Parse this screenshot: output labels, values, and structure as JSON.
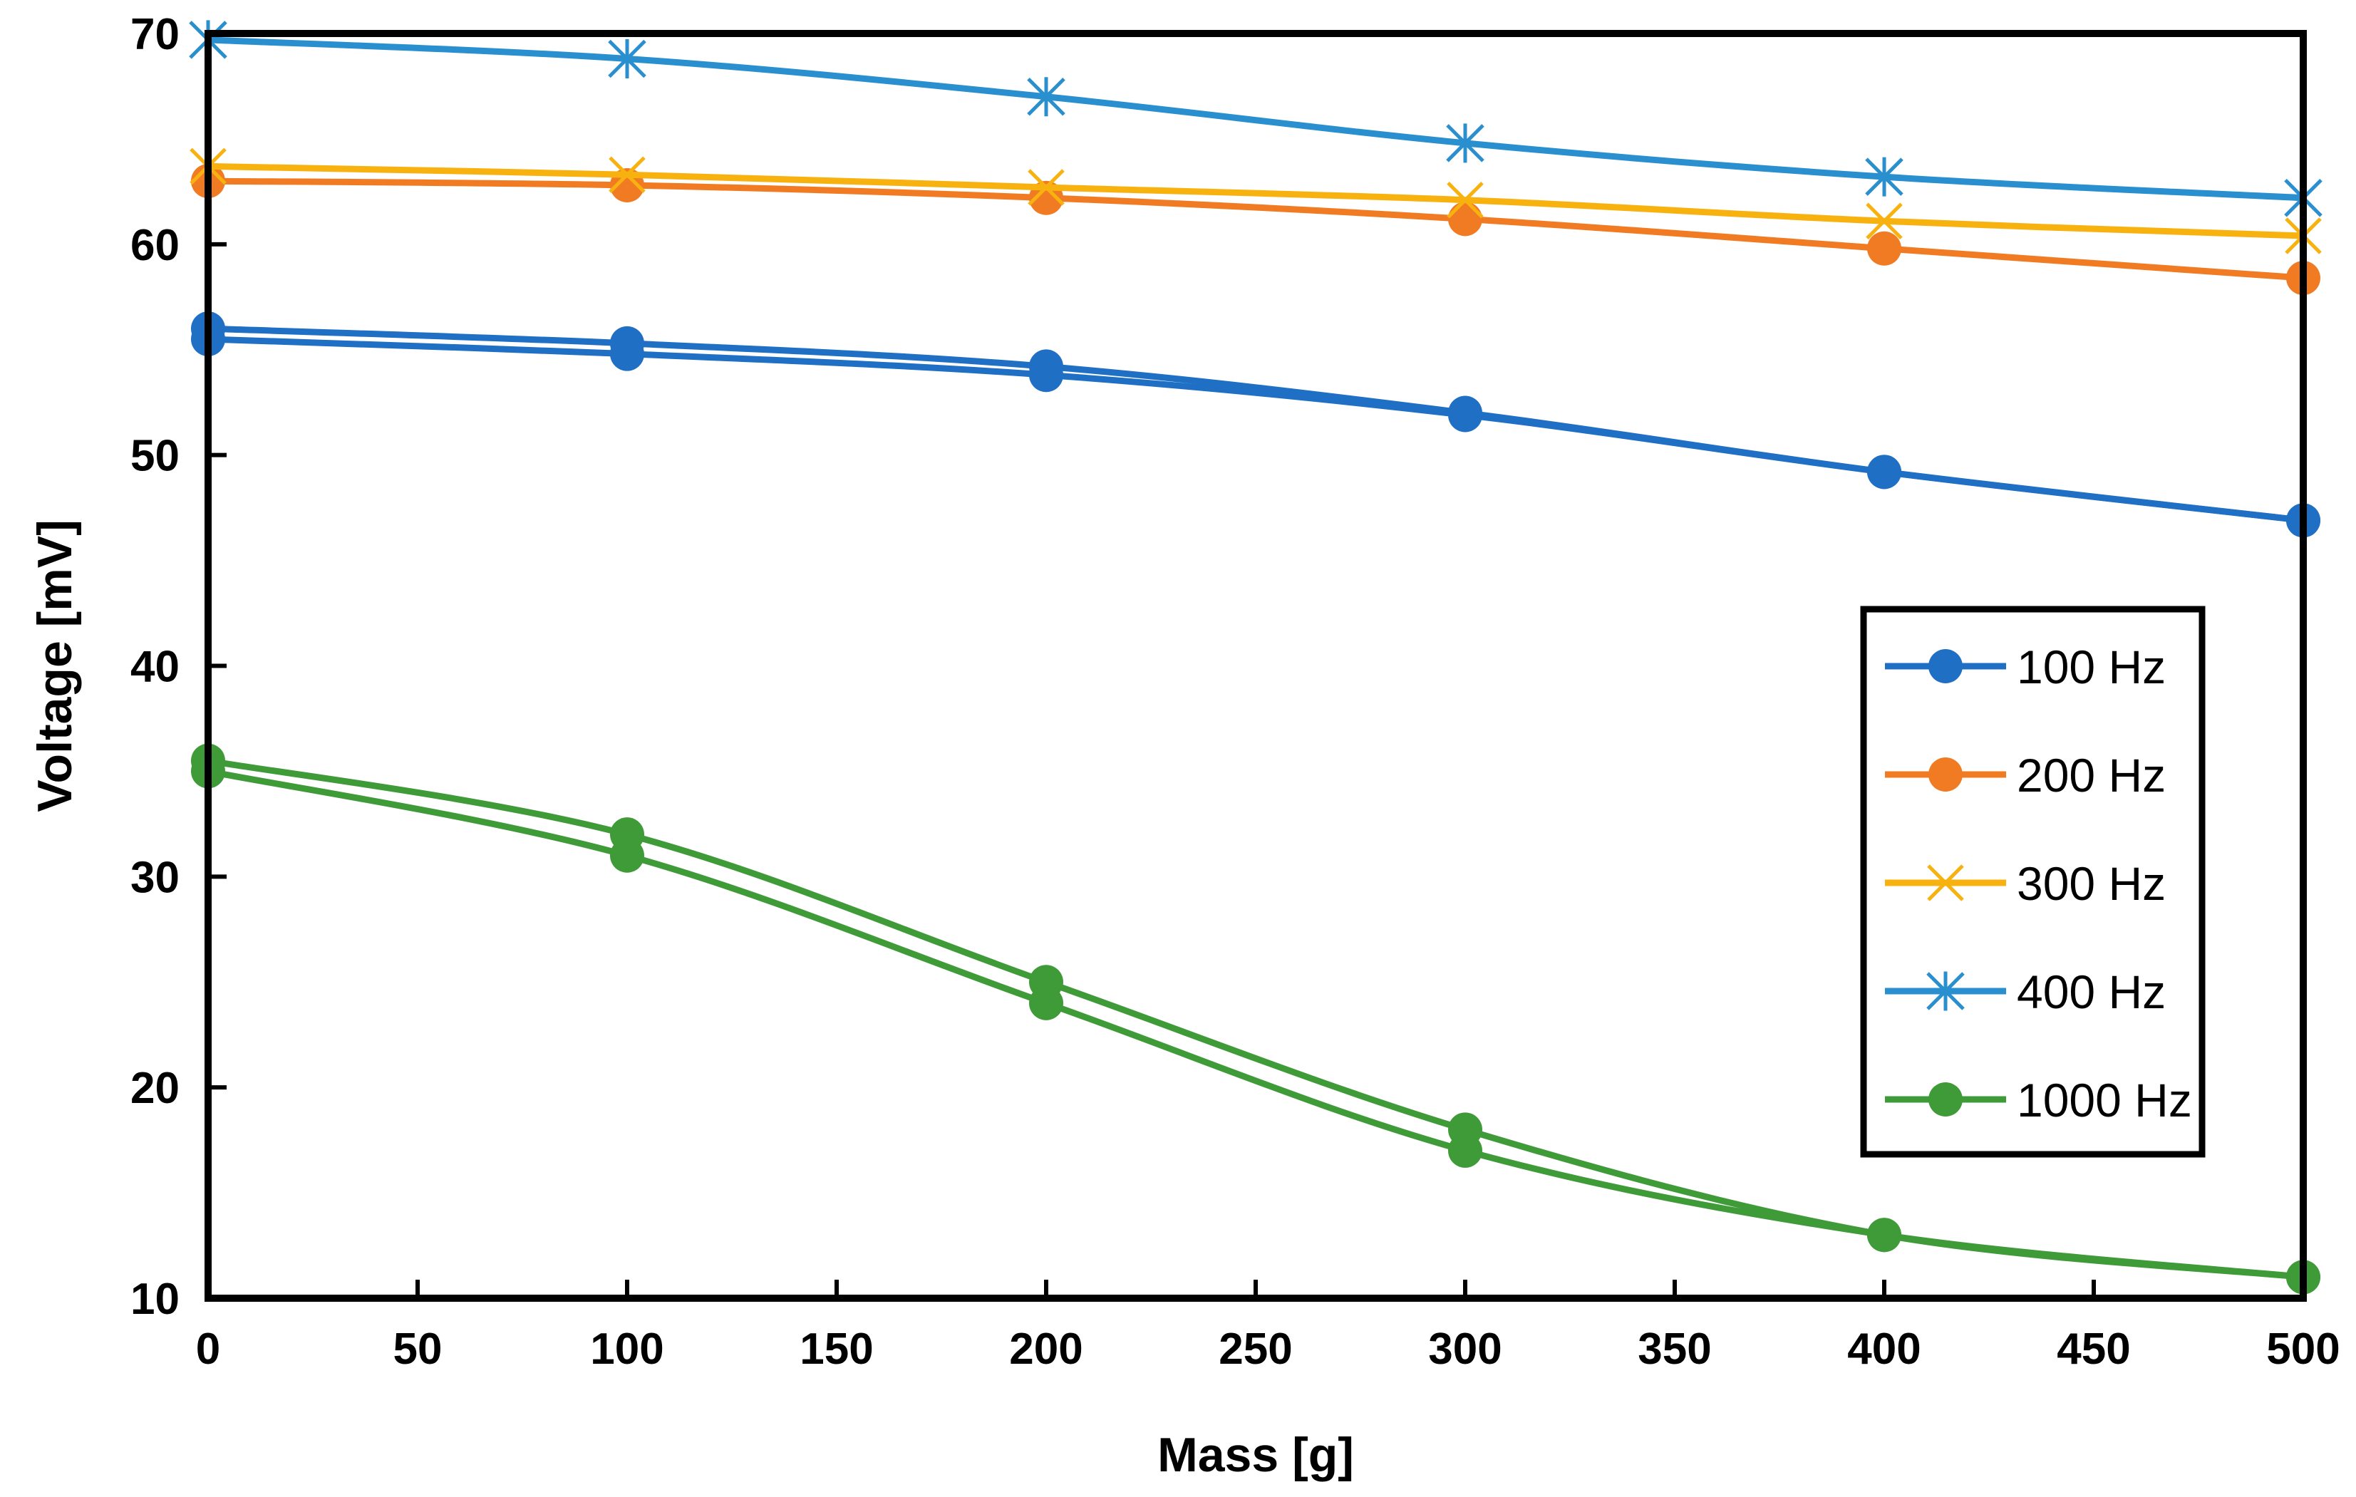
{
  "chart_data": {
    "type": "line",
    "title": "",
    "xlabel": "Mass [g]",
    "ylabel": "Voltage [mV]",
    "xlim": [
      0,
      500
    ],
    "ylim": [
      10,
      70
    ],
    "xticks": [
      0,
      50,
      100,
      150,
      200,
      250,
      300,
      350,
      400,
      450,
      500
    ],
    "yticks": [
      10,
      20,
      30,
      40,
      50,
      60,
      70
    ],
    "grid": false,
    "legend_position": "right",
    "x": [
      0,
      100,
      200,
      300,
      400,
      500
    ],
    "series": [
      {
        "name": "100 Hz",
        "color": "#1f6fc5",
        "marker": "circle",
        "values": [
          56,
          55.3,
          54.2,
          52,
          49.2,
          46.9
        ]
      },
      {
        "name": "100 Hz",
        "color": "#1f6fc5",
        "marker": "circle",
        "show_in_legend": false,
        "values": [
          55.5,
          54.8,
          53.8,
          51.9,
          49.2,
          46.9
        ]
      },
      {
        "name": "200 Hz",
        "color": "#f07b22",
        "marker": "circle",
        "values": [
          63,
          62.8,
          62.2,
          61.2,
          59.8,
          58.4
        ]
      },
      {
        "name": "300 Hz",
        "color": "#f8b20f",
        "marker": "x",
        "values": [
          63.7,
          63.3,
          62.7,
          62.1,
          61.1,
          60.4
        ]
      },
      {
        "name": "400 Hz",
        "color": "#2a8fcf",
        "marker": "asterisk",
        "values": [
          69.7,
          68.8,
          67,
          64.8,
          63.2,
          62.2
        ]
      },
      {
        "name": "1000 Hz",
        "color": "#3f9a38",
        "marker": "circle",
        "values": [
          35.5,
          32,
          25,
          18,
          13,
          11
        ]
      },
      {
        "name": "1000 Hz",
        "color": "#3f9a38",
        "marker": "circle",
        "show_in_legend": false,
        "values": [
          35,
          31,
          24,
          17,
          13,
          11
        ]
      }
    ]
  }
}
